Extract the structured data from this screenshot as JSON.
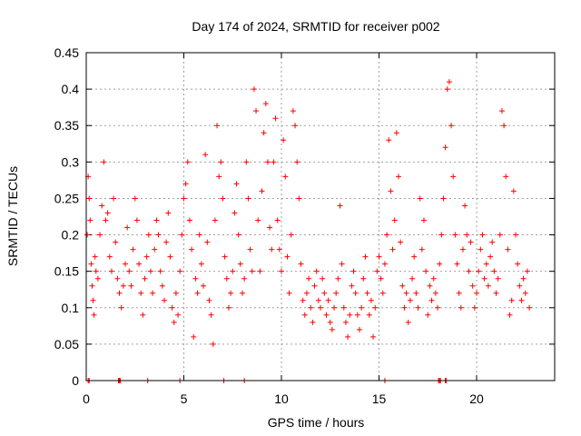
{
  "chart_data": {
    "type": "scatter",
    "title": "Day 174 of 2024, SRMTID for receiver p002",
    "xlabel": "GPS time / hours",
    "ylabel": "SRMTID / TECUs",
    "xlim": [
      0,
      24
    ],
    "ylim": [
      0,
      0.45
    ],
    "xticks": [
      0,
      5,
      10,
      15,
      20
    ],
    "yticks": [
      0,
      0.05,
      0.1,
      0.15,
      0.2,
      0.25,
      0.3,
      0.35,
      0.4,
      0.45
    ],
    "xtick_labels": [
      "0",
      "5",
      "10",
      "15",
      "20"
    ],
    "ytick_labels": [
      "0",
      "0.05",
      "0.1",
      "0.15",
      "0.2",
      "0.25",
      "0.3",
      "0.35",
      "0.4",
      "0.45"
    ],
    "grid": true,
    "marker": "+",
    "color": "#ff0000",
    "series": [
      {
        "name": "SRMTID",
        "points": [
          [
            0.05,
            0.2
          ],
          [
            0.1,
            0.28
          ],
          [
            0.15,
            0.25
          ],
          [
            0.2,
            0.22
          ],
          [
            0.25,
            0.16
          ],
          [
            0.3,
            0.13
          ],
          [
            0.35,
            0.11
          ],
          [
            0.4,
            0.09
          ],
          [
            0.45,
            0.17
          ],
          [
            0.5,
            0.15
          ],
          [
            0.6,
            0.14
          ],
          [
            0.7,
            0.2
          ],
          [
            0.8,
            0.24
          ],
          [
            0.9,
            0.3
          ],
          [
            1.0,
            0.22
          ],
          [
            1.1,
            0.23
          ],
          [
            1.2,
            0.17
          ],
          [
            1.3,
            0.15
          ],
          [
            1.4,
            0.25
          ],
          [
            1.5,
            0.19
          ],
          [
            1.6,
            0.14
          ],
          [
            1.7,
            0.12
          ],
          [
            1.8,
            0.1
          ],
          [
            1.9,
            0.13
          ],
          [
            2.0,
            0.16
          ],
          [
            2.1,
            0.21
          ],
          [
            2.2,
            0.15
          ],
          [
            2.3,
            0.13
          ],
          [
            2.4,
            0.18
          ],
          [
            2.5,
            0.25
          ],
          [
            2.6,
            0.22
          ],
          [
            2.7,
            0.16
          ],
          [
            2.8,
            0.12
          ],
          [
            2.9,
            0.09
          ],
          [
            3.0,
            0.14
          ],
          [
            3.1,
            0.17
          ],
          [
            3.2,
            0.2
          ],
          [
            3.3,
            0.15
          ],
          [
            3.4,
            0.12
          ],
          [
            3.5,
            0.18
          ],
          [
            3.6,
            0.22
          ],
          [
            3.7,
            0.2
          ],
          [
            3.8,
            0.15
          ],
          [
            3.9,
            0.13
          ],
          [
            4.0,
            0.11
          ],
          [
            4.1,
            0.19
          ],
          [
            4.2,
            0.23
          ],
          [
            4.3,
            0.17
          ],
          [
            4.4,
            0.1
          ],
          [
            4.5,
            0.08
          ],
          [
            4.6,
            0.12
          ],
          [
            4.7,
            0.09
          ],
          [
            4.8,
            0.15
          ],
          [
            4.9,
            0.2
          ],
          [
            5.0,
            0.25
          ],
          [
            5.1,
            0.27
          ],
          [
            5.2,
            0.3
          ],
          [
            5.3,
            0.22
          ],
          [
            5.4,
            0.18
          ],
          [
            5.5,
            0.06
          ],
          [
            5.6,
            0.14
          ],
          [
            5.7,
            0.12
          ],
          [
            5.8,
            0.2
          ],
          [
            5.9,
            0.16
          ],
          [
            6.0,
            0.13
          ],
          [
            6.1,
            0.31
          ],
          [
            6.2,
            0.19
          ],
          [
            6.3,
            0.11
          ],
          [
            6.4,
            0.09
          ],
          [
            6.5,
            0.05
          ],
          [
            6.6,
            0.22
          ],
          [
            6.7,
            0.35
          ],
          [
            6.8,
            0.28
          ],
          [
            6.9,
            0.3
          ],
          [
            7.0,
            0.25
          ],
          [
            7.1,
            0.17
          ],
          [
            7.2,
            0.14
          ],
          [
            7.3,
            0.1
          ],
          [
            7.4,
            0.12
          ],
          [
            7.5,
            0.15
          ],
          [
            7.6,
            0.23
          ],
          [
            7.7,
            0.27
          ],
          [
            7.8,
            0.2
          ],
          [
            7.9,
            0.16
          ],
          [
            8.0,
            0.12
          ],
          [
            8.1,
            0.14
          ],
          [
            8.2,
            0.3
          ],
          [
            8.3,
            0.25
          ],
          [
            8.4,
            0.18
          ],
          [
            8.5,
            0.15
          ],
          [
            8.6,
            0.4
          ],
          [
            8.7,
            0.37
          ],
          [
            8.8,
            0.22
          ],
          [
            8.9,
            0.15
          ],
          [
            9.0,
            0.26
          ],
          [
            9.1,
            0.34
          ],
          [
            9.2,
            0.38
          ],
          [
            9.3,
            0.3
          ],
          [
            9.4,
            0.21
          ],
          [
            9.5,
            0.18
          ],
          [
            9.6,
            0.3
          ],
          [
            9.7,
            0.36
          ],
          [
            9.8,
            0.22
          ],
          [
            9.9,
            0.18
          ],
          [
            10.0,
            0.15
          ],
          [
            10.1,
            0.33
          ],
          [
            10.2,
            0.28
          ],
          [
            10.3,
            0.17
          ],
          [
            10.4,
            0.12
          ],
          [
            10.5,
            0.2
          ],
          [
            10.6,
            0.37
          ],
          [
            10.7,
            0.35
          ],
          [
            10.8,
            0.3
          ],
          [
            10.9,
            0.25
          ],
          [
            11.0,
            0.16
          ],
          [
            11.1,
            0.11
          ],
          [
            11.2,
            0.09
          ],
          [
            11.3,
            0.12
          ],
          [
            11.4,
            0.14
          ],
          [
            11.5,
            0.1
          ],
          [
            11.6,
            0.08
          ],
          [
            11.7,
            0.13
          ],
          [
            11.8,
            0.15
          ],
          [
            11.9,
            0.11
          ],
          [
            12.0,
            0.1
          ],
          [
            12.1,
            0.14
          ],
          [
            12.2,
            0.12
          ],
          [
            12.3,
            0.09
          ],
          [
            12.4,
            0.11
          ],
          [
            12.5,
            0.08
          ],
          [
            12.6,
            0.07
          ],
          [
            12.7,
            0.1
          ],
          [
            12.8,
            0.12
          ],
          [
            12.9,
            0.14
          ],
          [
            13.0,
            0.24
          ],
          [
            13.1,
            0.16
          ],
          [
            13.2,
            0.1
          ],
          [
            13.3,
            0.08
          ],
          [
            13.4,
            0.06
          ],
          [
            13.5,
            0.09
          ],
          [
            13.6,
            0.13
          ],
          [
            13.7,
            0.15
          ],
          [
            13.8,
            0.12
          ],
          [
            13.9,
            0.09
          ],
          [
            14.0,
            0.07
          ],
          [
            14.1,
            0.1
          ],
          [
            14.2,
            0.14
          ],
          [
            14.3,
            0.17
          ],
          [
            14.4,
            0.12
          ],
          [
            14.5,
            0.09
          ],
          [
            14.6,
            0.11
          ],
          [
            14.7,
            0.06
          ],
          [
            14.8,
            0.1
          ],
          [
            14.9,
            0.15
          ],
          [
            15.0,
            0.17
          ],
          [
            15.1,
            0.14
          ],
          [
            15.2,
            0.12
          ],
          [
            15.3,
            0.16
          ],
          [
            15.4,
            0.2
          ],
          [
            15.5,
            0.33
          ],
          [
            15.6,
            0.26
          ],
          [
            15.7,
            0.18
          ],
          [
            15.8,
            0.22
          ],
          [
            15.9,
            0.34
          ],
          [
            16.0,
            0.28
          ],
          [
            16.1,
            0.19
          ],
          [
            16.2,
            0.13
          ],
          [
            16.3,
            0.1
          ],
          [
            16.4,
            0.12
          ],
          [
            16.5,
            0.08
          ],
          [
            16.6,
            0.11
          ],
          [
            16.7,
            0.14
          ],
          [
            16.8,
            0.17
          ],
          [
            16.9,
            0.12
          ],
          [
            17.0,
            0.1
          ],
          [
            17.1,
            0.25
          ],
          [
            17.2,
            0.18
          ],
          [
            17.3,
            0.22
          ],
          [
            17.4,
            0.15
          ],
          [
            17.5,
            0.09
          ],
          [
            17.6,
            0.13
          ],
          [
            17.7,
            0.11
          ],
          [
            17.8,
            0.14
          ],
          [
            17.9,
            0.12
          ],
          [
            18.0,
            0.1
          ],
          [
            18.1,
            0.16
          ],
          [
            18.2,
            0.2
          ],
          [
            18.3,
            0.25
          ],
          [
            18.4,
            0.32
          ],
          [
            18.5,
            0.4
          ],
          [
            18.6,
            0.41
          ],
          [
            18.7,
            0.35
          ],
          [
            18.8,
            0.28
          ],
          [
            18.9,
            0.2
          ],
          [
            19.0,
            0.16
          ],
          [
            19.1,
            0.12
          ],
          [
            19.2,
            0.1
          ],
          [
            19.3,
            0.18
          ],
          [
            19.4,
            0.24
          ],
          [
            19.5,
            0.2
          ],
          [
            19.6,
            0.15
          ],
          [
            19.7,
            0.19
          ],
          [
            19.8,
            0.13
          ],
          [
            19.9,
            0.1
          ],
          [
            20.0,
            0.12
          ],
          [
            20.1,
            0.15
          ],
          [
            20.2,
            0.18
          ],
          [
            20.3,
            0.2
          ],
          [
            20.4,
            0.14
          ],
          [
            20.5,
            0.16
          ],
          [
            20.6,
            0.13
          ],
          [
            20.7,
            0.17
          ],
          [
            20.8,
            0.19
          ],
          [
            20.9,
            0.15
          ],
          [
            21.0,
            0.12
          ],
          [
            21.1,
            0.14
          ],
          [
            21.2,
            0.2
          ],
          [
            21.3,
            0.37
          ],
          [
            21.4,
            0.35
          ],
          [
            21.5,
            0.28
          ],
          [
            21.6,
            0.18
          ],
          [
            21.7,
            0.09
          ],
          [
            21.8,
            0.11
          ],
          [
            21.9,
            0.26
          ],
          [
            22.0,
            0.2
          ],
          [
            22.1,
            0.16
          ],
          [
            22.2,
            0.13
          ],
          [
            22.3,
            0.11
          ],
          [
            22.4,
            0.14
          ],
          [
            22.5,
            0.12
          ],
          [
            22.6,
            0.15
          ],
          [
            22.7,
            0.1
          ]
        ]
      }
    ],
    "zero_markers_x": [
      0.1,
      0.15,
      1.65,
      1.7,
      1.75,
      3.15,
      4.8,
      7.05,
      8.1,
      15.3,
      18.05,
      18.1,
      18.15,
      18.4,
      18.45
    ]
  }
}
